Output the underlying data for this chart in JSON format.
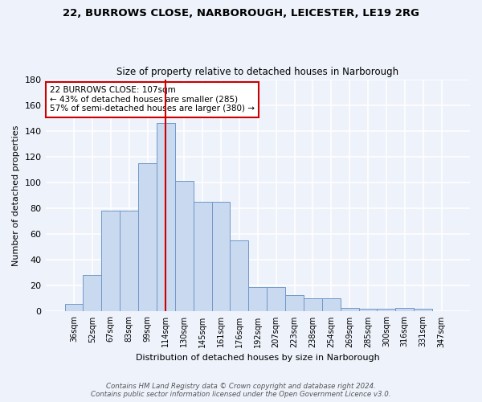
{
  "title1": "22, BURROWS CLOSE, NARBOROUGH, LEICESTER, LE19 2RG",
  "title2": "Size of property relative to detached houses in Narborough",
  "xlabel": "Distribution of detached houses by size in Narborough",
  "ylabel": "Number of detached properties",
  "bar_labels": [
    "36sqm",
    "52sqm",
    "67sqm",
    "83sqm",
    "99sqm",
    "114sqm",
    "130sqm",
    "145sqm",
    "161sqm",
    "176sqm",
    "192sqm",
    "207sqm",
    "223sqm",
    "238sqm",
    "254sqm",
    "269sqm",
    "285sqm",
    "300sqm",
    "316sqm",
    "331sqm",
    "347sqm"
  ],
  "bar_values": [
    6,
    28,
    78,
    78,
    115,
    146,
    101,
    85,
    85,
    55,
    19,
    19,
    13,
    10,
    10,
    3,
    2,
    2,
    3,
    2,
    0
  ],
  "bar_color": "#c9d9f0",
  "bar_edge_color": "#7098c8",
  "vline_x": 5,
  "vline_color": "#cc0000",
  "annotation_text": "22 BURROWS CLOSE: 107sqm\n← 43% of detached houses are smaller (285)\n57% of semi-detached houses are larger (380) →",
  "annotation_box_color": "#ffffff",
  "annotation_edge_color": "#cc0000",
  "ylim": [
    0,
    180
  ],
  "yticks": [
    0,
    20,
    40,
    60,
    80,
    100,
    120,
    140,
    160,
    180
  ],
  "footer1": "Contains HM Land Registry data © Crown copyright and database right 2024.",
  "footer2": "Contains public sector information licensed under the Open Government Licence v3.0.",
  "background_color": "#eef2fb",
  "grid_color": "#ffffff"
}
